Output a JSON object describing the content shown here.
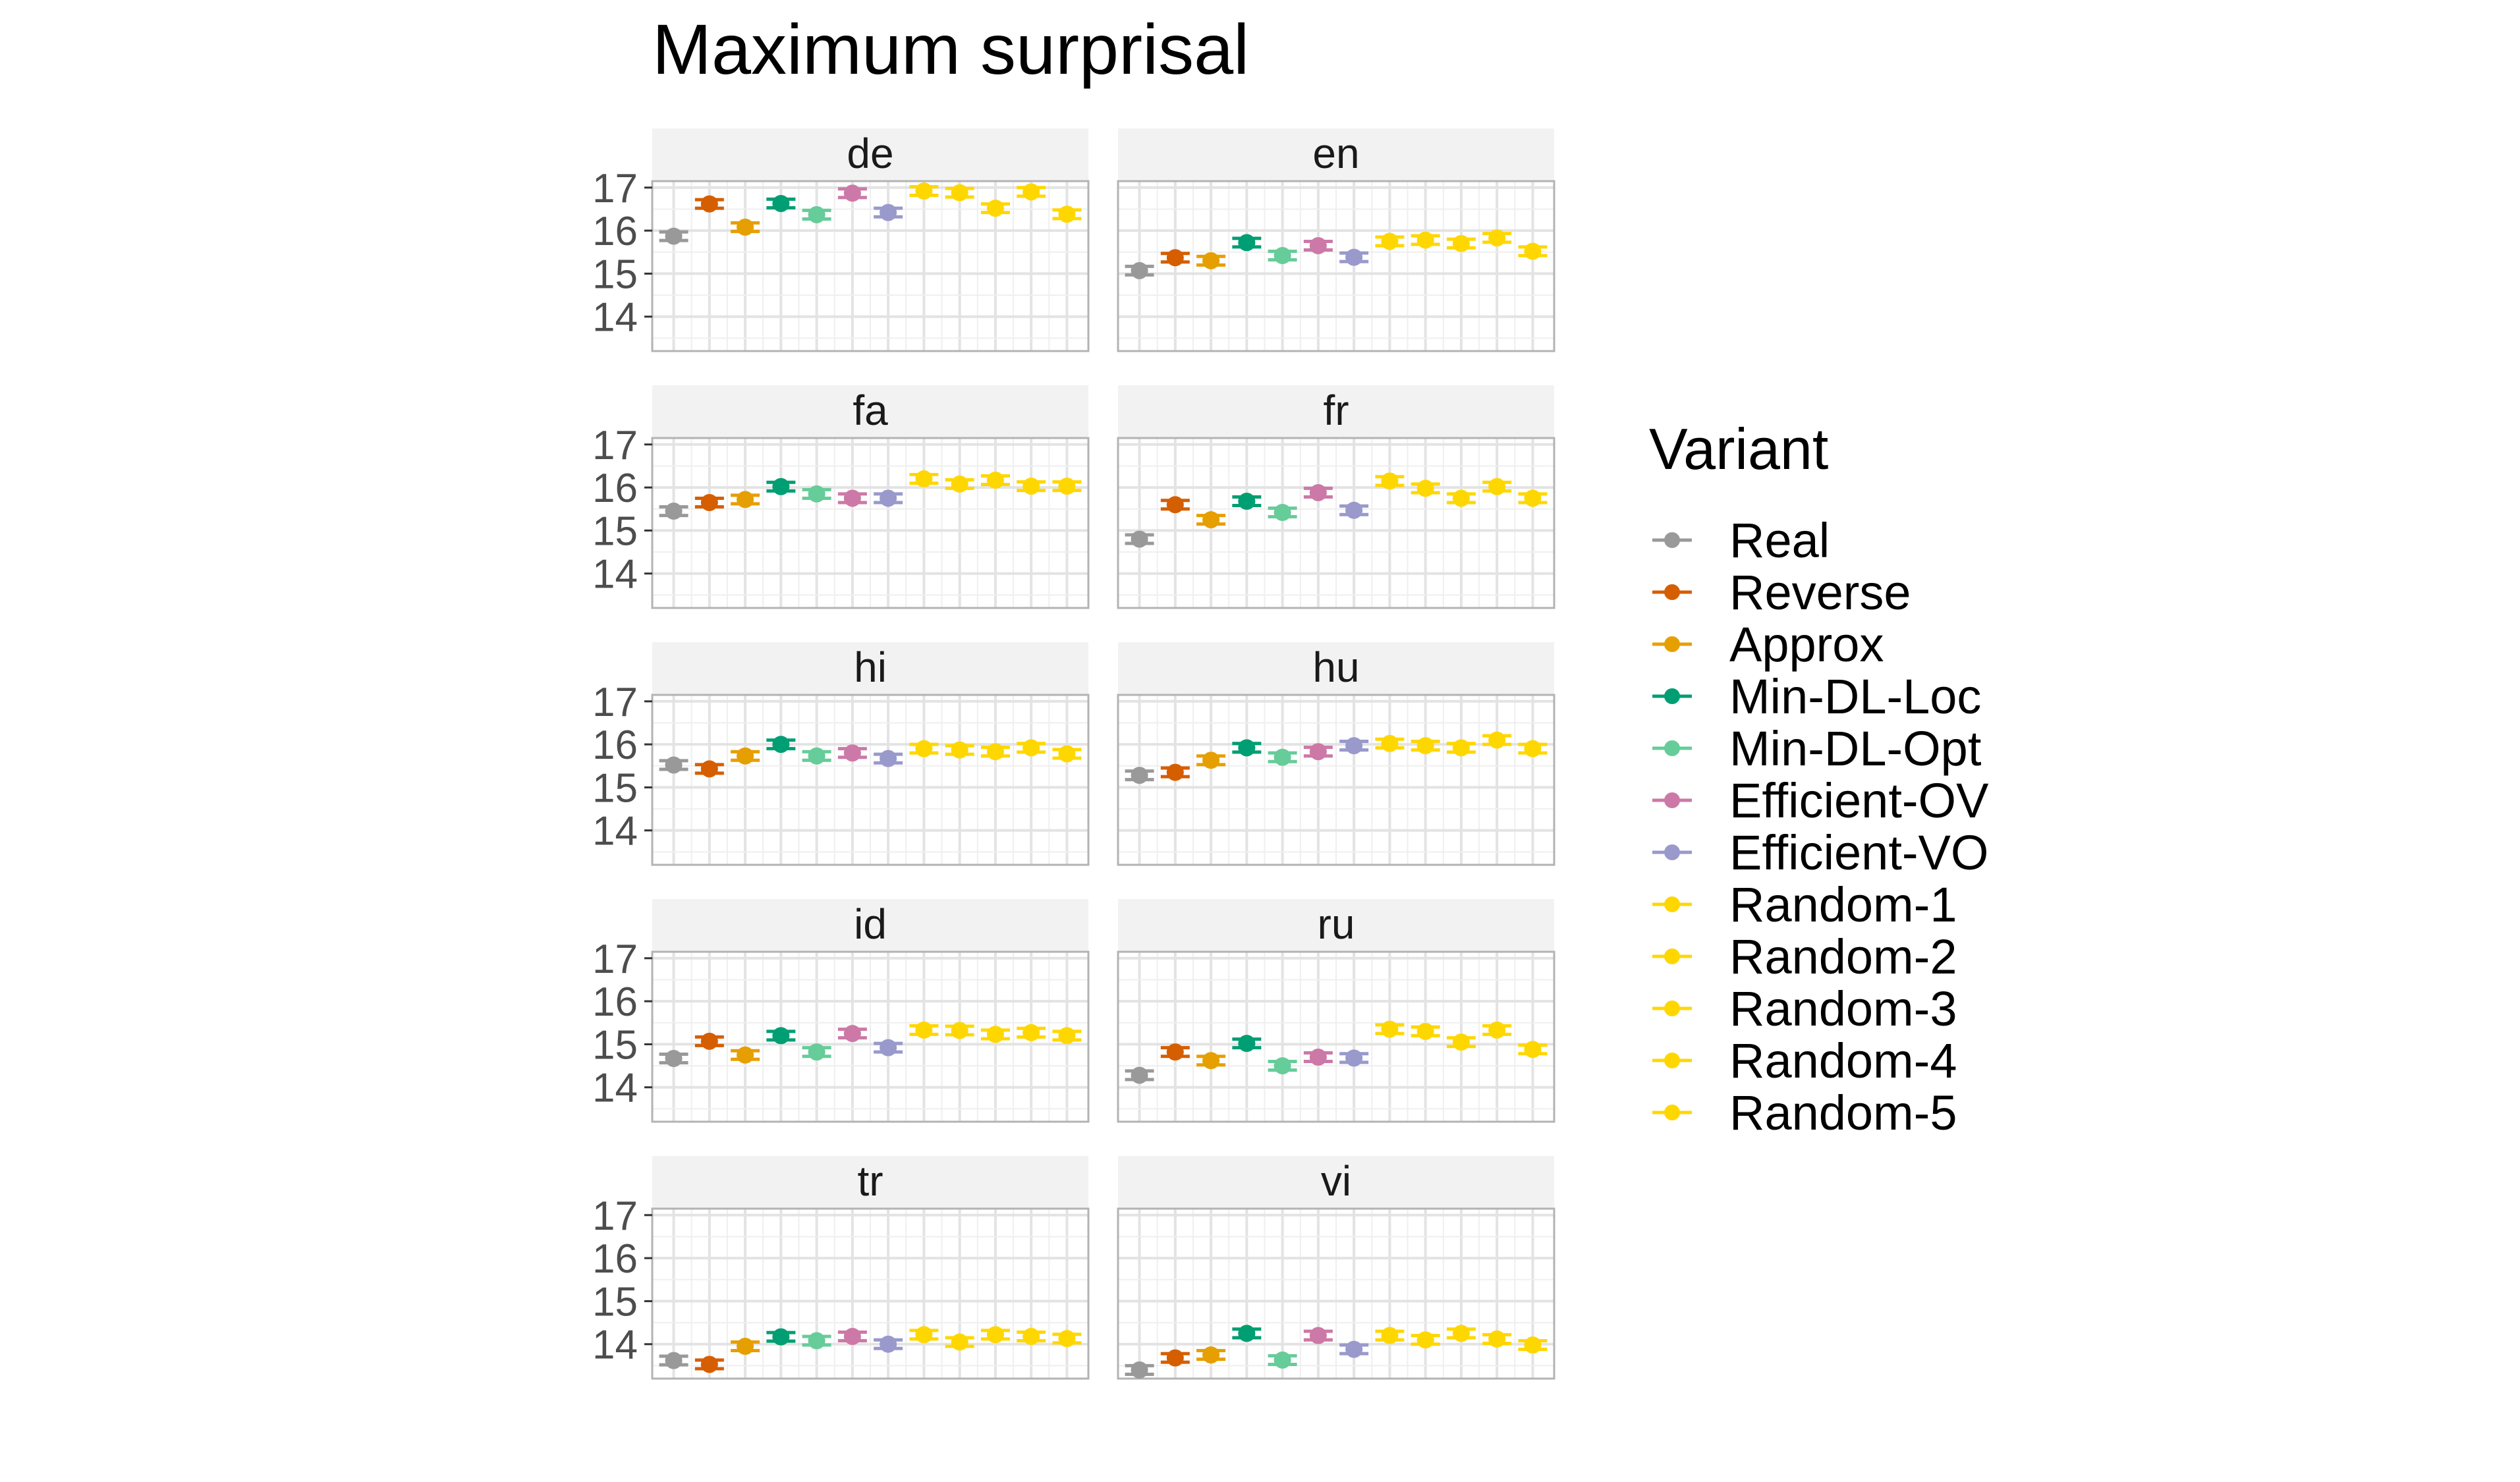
{
  "chart_data": {
    "type": "scatter",
    "title": "Maximum surprisal",
    "xlabel": "",
    "ylabel": "",
    "ylim": [
      13.2,
      17.15
    ],
    "y_ticks": [
      14,
      15,
      16,
      17
    ],
    "grid": true,
    "legend": {
      "title": "Variant",
      "placement": "right",
      "entries": [
        {
          "name": "Real",
          "color": "#999999"
        },
        {
          "name": "Reverse",
          "color": "#D55E00"
        },
        {
          "name": "Approx",
          "color": "#E69F00"
        },
        {
          "name": "Min-DL-Loc",
          "color": "#009E73"
        },
        {
          "name": "Min-DL-Opt",
          "color": "#66CC99"
        },
        {
          "name": "Efficient-OV",
          "color": "#CC79A7"
        },
        {
          "name": "Efficient-VO",
          "color": "#9999CC"
        },
        {
          "name": "Random-1",
          "color": "#FFD700"
        },
        {
          "name": "Random-2",
          "color": "#FFD700"
        },
        {
          "name": "Random-3",
          "color": "#FFD700"
        },
        {
          "name": "Random-4",
          "color": "#FFD700"
        },
        {
          "name": "Random-5",
          "color": "#FFD700"
        }
      ]
    },
    "error_halfwidth": 0.1,
    "panels": [
      {
        "label": "de",
        "values": [
          15.87,
          16.62,
          16.08,
          16.63,
          16.37,
          16.87,
          16.42,
          16.92,
          16.88,
          16.52,
          16.9,
          16.38
        ]
      },
      {
        "label": "en",
        "values": [
          15.07,
          15.37,
          15.3,
          15.72,
          15.42,
          15.65,
          15.38,
          15.75,
          15.78,
          15.7,
          15.83,
          15.52
        ]
      },
      {
        "label": "fa",
        "values": [
          15.45,
          15.65,
          15.72,
          16.02,
          15.85,
          15.75,
          15.75,
          16.2,
          16.08,
          16.17,
          16.03,
          16.03
        ]
      },
      {
        "label": "fr",
        "values": [
          14.8,
          15.6,
          15.25,
          15.68,
          15.42,
          15.88,
          15.47,
          16.15,
          15.98,
          15.75,
          16.02,
          15.75
        ]
      },
      {
        "label": "hi",
        "values": [
          15.52,
          15.43,
          15.73,
          16.0,
          15.73,
          15.8,
          15.67,
          15.9,
          15.87,
          15.83,
          15.92,
          15.78
        ]
      },
      {
        "label": "hu",
        "values": [
          15.28,
          15.35,
          15.63,
          15.92,
          15.7,
          15.83,
          15.97,
          16.02,
          15.97,
          15.92,
          16.1,
          15.9
        ]
      },
      {
        "label": "id",
        "values": [
          14.67,
          15.07,
          14.75,
          15.2,
          14.82,
          15.25,
          14.92,
          15.33,
          15.32,
          15.23,
          15.27,
          15.2
        ]
      },
      {
        "label": "ru",
        "values": [
          14.28,
          14.82,
          14.62,
          15.02,
          14.5,
          14.7,
          14.68,
          15.35,
          15.3,
          15.05,
          15.33,
          14.88
        ]
      },
      {
        "label": "tr",
        "values": [
          13.62,
          13.53,
          13.95,
          14.17,
          14.08,
          14.18,
          14.0,
          14.22,
          14.05,
          14.22,
          14.18,
          14.13
        ]
      },
      {
        "label": "vi",
        "values": [
          13.4,
          13.68,
          13.75,
          14.25,
          13.63,
          14.2,
          13.88,
          14.2,
          14.1,
          14.25,
          14.12,
          13.98
        ]
      }
    ]
  }
}
